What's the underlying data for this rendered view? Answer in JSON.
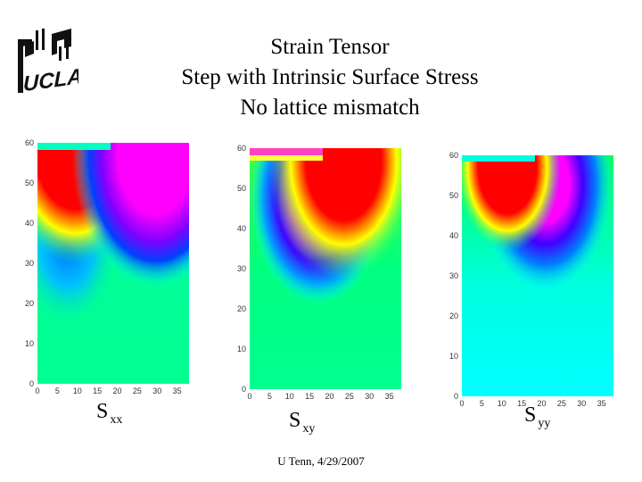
{
  "slide": {
    "title_line1": "Strain Tensor",
    "title_line2": "Step with Intrinsic Surface Stress",
    "title_line3": "No lattice mismatch",
    "logo_text": "UCLA",
    "footer": "U Tenn, 4/29/2007"
  },
  "chart_data": [
    {
      "type": "heatmap",
      "caption_main": "S",
      "caption_sub": "xx",
      "x_ticks": [
        "0",
        "5",
        "10",
        "15",
        "20",
        "25",
        "30",
        "35"
      ],
      "y_ticks": [
        "0",
        "10",
        "20",
        "30",
        "40",
        "50",
        "60"
      ],
      "xlim": [
        0,
        38
      ],
      "ylim": [
        0,
        60
      ],
      "colormap": [
        "#ff00ff",
        "#ff0000",
        "#ffff00",
        "#00ff00",
        "#00ffff",
        "#0000ff"
      ]
    },
    {
      "type": "heatmap",
      "caption_main": "S",
      "caption_sub": "xy",
      "x_ticks": [
        "0",
        "5",
        "10",
        "15",
        "20",
        "25",
        "30",
        "35"
      ],
      "y_ticks": [
        "0",
        "10",
        "20",
        "30",
        "40",
        "50",
        "60"
      ],
      "xlim": [
        0,
        38
      ],
      "ylim": [
        0,
        60
      ],
      "colormap": [
        "#ff00ff",
        "#ff0000",
        "#ffff00",
        "#00ff00",
        "#00ffff",
        "#0000ff"
      ]
    },
    {
      "type": "heatmap",
      "caption_main": "S",
      "caption_sub": "yy",
      "x_ticks": [
        "0",
        "5",
        "10",
        "15",
        "20",
        "25",
        "30",
        "35"
      ],
      "y_ticks": [
        "0",
        "10",
        "20",
        "30",
        "40",
        "50",
        "60"
      ],
      "xlim": [
        0,
        38
      ],
      "ylim": [
        0,
        60
      ],
      "colormap": [
        "#ff00ff",
        "#ff0000",
        "#ffff00",
        "#00ff00",
        "#00ffff",
        "#0000ff"
      ]
    }
  ]
}
